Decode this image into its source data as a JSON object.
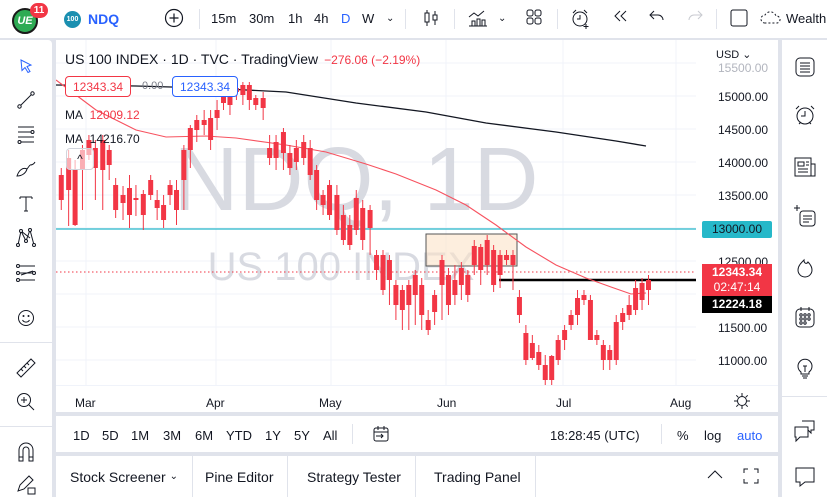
{
  "topbar": {
    "notification_count": "11",
    "avatar_text": "UE",
    "symbol_badge": "100",
    "symbol": "NDQ",
    "intervals": [
      "15m",
      "30m",
      "1h",
      "4h",
      "D",
      "W"
    ],
    "active_interval": "D",
    "workspace_label": "Wealth"
  },
  "legend": {
    "title": "US 100 INDEX · 1D · TVC · TradingView",
    "change": "−276.06 (−2.19%)",
    "bid": "12343.34",
    "spread": "0.00",
    "ask": "12343.34",
    "ma1_label": "MA",
    "ma1_value": "12009.12",
    "ma2_label": "MA",
    "ma2_value": "14216.70"
  },
  "watermark": {
    "line1": "NDQ, 1D",
    "line2": "US 100 INDEX"
  },
  "price_axis": {
    "currency": "USD",
    "labels": [
      "15500.00",
      "15000.00",
      "14500.00",
      "14000.00",
      "13500.00",
      "13000.00",
      "12500.00",
      "12000.00",
      "11500.00",
      "11000.00"
    ],
    "tag_13000": "13000.00",
    "last_price": "12343.34",
    "countdown": "02:47:14",
    "line_price": "12224.18"
  },
  "time_axis": {
    "labels": [
      "Mar",
      "Apr",
      "May",
      "Jun",
      "Jul",
      "Aug"
    ]
  },
  "range_bar": {
    "ranges": [
      "1D",
      "5D",
      "1M",
      "3M",
      "6M",
      "YTD",
      "1Y",
      "5Y",
      "All"
    ],
    "clock": "18:28:45 (UTC)",
    "percent": "%",
    "log": "log",
    "auto": "auto"
  },
  "bottom_tabs": [
    "Stock Screener",
    "Pine Editor",
    "Strategy Tester",
    "Trading Panel"
  ],
  "colors": {
    "up": "#22ab94",
    "down": "#f23645",
    "accent": "#2962ff",
    "level": "#26b8c9",
    "ma_red": "#f7525f",
    "ma_black": "#131722"
  }
}
